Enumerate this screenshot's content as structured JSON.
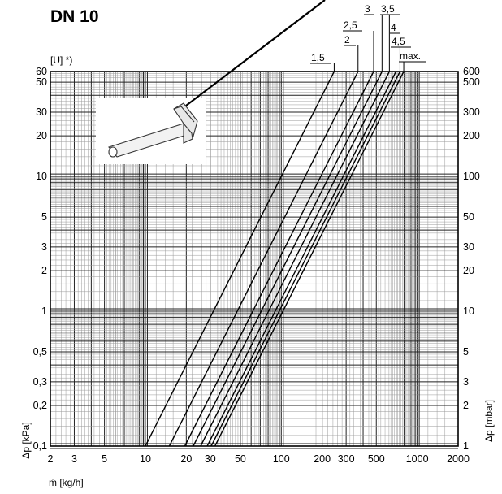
{
  "chart_data": {
    "type": "line",
    "title": "DN 10",
    "x_axis": {
      "label": "ṁ [kg/h]",
      "scale": "log",
      "range": [
        2,
        2000
      ],
      "tick_labels": [
        "2",
        "3",
        "5",
        "10",
        "20",
        "30",
        "50",
        "100",
        "200",
        "300",
        "500",
        "1000",
        "2000"
      ],
      "tick_values": [
        2,
        3,
        5,
        10,
        20,
        30,
        50,
        100,
        200,
        300,
        500,
        1000,
        2000
      ]
    },
    "y_axis_left": {
      "label": "Δp [kPa]",
      "scale": "log",
      "range": [
        0.1,
        60
      ],
      "tick_labels": [
        "0,1",
        "0,2",
        "0,3",
        "0,5",
        "1",
        "2",
        "3",
        "5",
        "10",
        "20",
        "30",
        "50",
        "60"
      ],
      "tick_values": [
        0.1,
        0.2,
        0.3,
        0.5,
        1,
        2,
        3,
        5,
        10,
        20,
        30,
        50,
        60
      ]
    },
    "y_axis_right": {
      "label": "Δp [mbar]",
      "scale": "log",
      "tick_labels": [
        "1",
        "2",
        "3",
        "5",
        "10",
        "20",
        "30",
        "50",
        "100",
        "200",
        "300",
        "500",
        "600"
      ],
      "tick_values": [
        1,
        2,
        3,
        5,
        10,
        20,
        30,
        50,
        100,
        200,
        300,
        500,
        600
      ]
    },
    "series_header": "[U] *)",
    "grid": true,
    "series": [
      {
        "name": "1,5",
        "x": [
          10.0,
          245
        ],
        "y": [
          0.1,
          60
        ]
      },
      {
        "name": "2",
        "x": [
          15.0,
          367
        ],
        "y": [
          0.1,
          60
        ]
      },
      {
        "name": "2,5",
        "x": [
          19.5,
          478
        ],
        "y": [
          0.1,
          60
        ]
      },
      {
        "name": "3",
        "x": [
          22.5,
          551
        ],
        "y": [
          0.1,
          60
        ]
      },
      {
        "name": "3,5",
        "x": [
          25.5,
          624
        ],
        "y": [
          0.1,
          60
        ]
      },
      {
        "name": "4",
        "x": [
          28.5,
          698
        ],
        "y": [
          0.1,
          60
        ]
      },
      {
        "name": "4,5",
        "x": [
          30.5,
          747
        ],
        "y": [
          0.1,
          60
        ]
      },
      {
        "name": "max.",
        "x": [
          32.5,
          796
        ],
        "y": [
          0.1,
          60
        ]
      }
    ],
    "inset": {
      "icon": "hex-key-icon"
    }
  }
}
